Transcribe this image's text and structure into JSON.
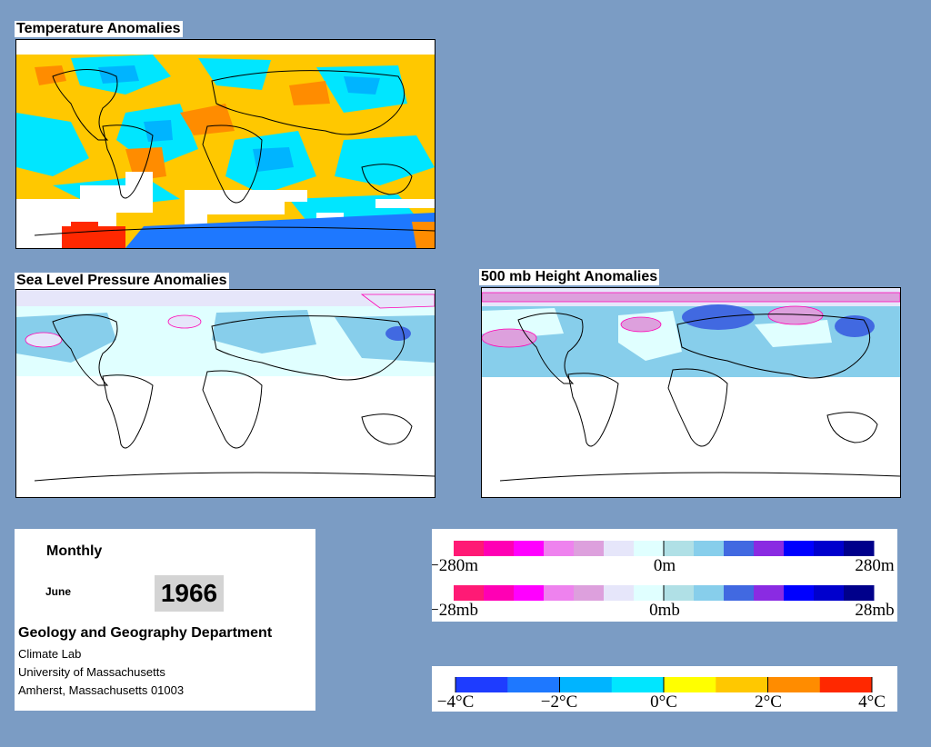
{
  "panels": {
    "temperature": {
      "title": "Temperature Anomalies"
    },
    "slp": {
      "title": "Sea Level Pressure Anomalies"
    },
    "height500": {
      "title": "500 mb Height Anomalies"
    }
  },
  "info": {
    "period": "Monthly",
    "month": "June",
    "year": "1966",
    "department": "Geology and Geography Department",
    "lab": "Climate Lab",
    "university": "University of Massachusetts",
    "address": "Amherst, Massachusetts 01003"
  },
  "legends": {
    "height": {
      "colors": [
        "#ff1a75",
        "#ff00b4",
        "#ff00ff",
        "#ee82ee",
        "#dda0dd",
        "#e6e6fa",
        "#e0ffff",
        "#b0e0e6",
        "#87ceeb",
        "#4169e1",
        "#8a2be2",
        "#0000ff",
        "#0000cd",
        "#00008b"
      ],
      "labels": [
        "−280m",
        "0m",
        "280m"
      ]
    },
    "pressure": {
      "colors": [
        "#ff1a75",
        "#ff00b4",
        "#ff00ff",
        "#ee82ee",
        "#dda0dd",
        "#e6e6fa",
        "#e0ffff",
        "#b0e0e6",
        "#87ceeb",
        "#4169e1",
        "#8a2be2",
        "#0000ff",
        "#0000cd",
        "#00008b"
      ],
      "labels": [
        "−28mb",
        "0mb",
        "28mb"
      ]
    },
    "temperature": {
      "colors": [
        "#1e3cff",
        "#1e78ff",
        "#00b4ff",
        "#00e6ff",
        "#ffff00",
        "#ffc800",
        "#ff8c00",
        "#ff2800"
      ],
      "labels": [
        "−4°C",
        "−2°C",
        "0°C",
        "2°C",
        "4°C"
      ]
    }
  }
}
